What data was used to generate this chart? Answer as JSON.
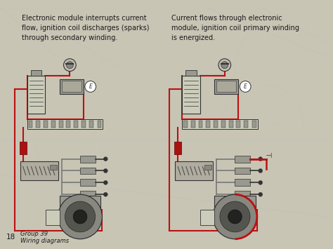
{
  "bg_color": "#c8c5b5",
  "title_left": "Electronic module interrupts current\nflow, ignition coil discharges (sparks)\nthrough secondary winding.",
  "title_right": "Current flows through electronic\nmodule, ignition coil primary winding\nis energized.",
  "footer_line1": "Group 39",
  "footer_line2": "Wiring diagrams",
  "page_number": "18",
  "text_color": "#1a1a1a",
  "red_wire": "#bb1111",
  "gray_wire": "#777777",
  "dark": "#333333",
  "comp_gray": "#999990",
  "comp_light": "#ccccbb",
  "fuse_color": "#bbbbaa",
  "coil_color": "#ddddcc",
  "dist_outer": "#888880",
  "dist_inner": "#2a2a28",
  "watermark_color": "#9bb0cc"
}
